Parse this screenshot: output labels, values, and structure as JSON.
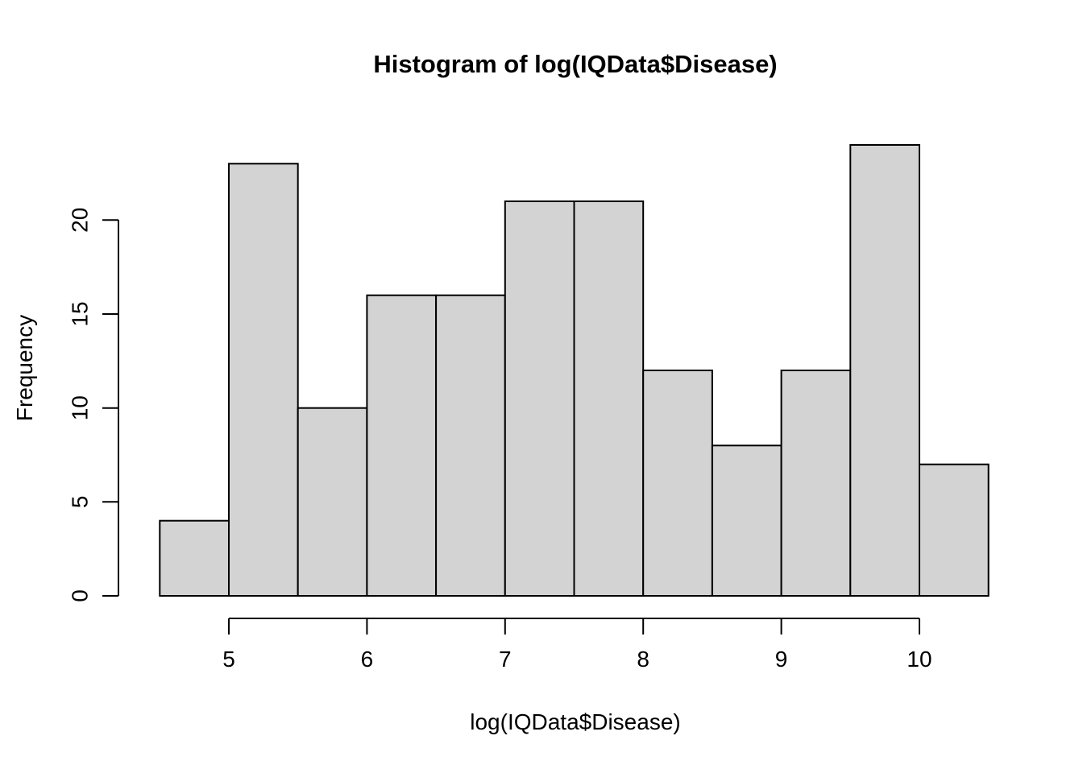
{
  "figure": {
    "background": "#ffffff",
    "text_color": "#000000"
  },
  "chart_data": {
    "type": "bar",
    "variant": "histogram",
    "title": "Histogram of log(IQData$Disease)",
    "xlabel": "log(IQData$Disease)",
    "ylabel": "Frequency",
    "bin_breaks": [
      4.5,
      5,
      5.5,
      6,
      6.5,
      7,
      7.5,
      8,
      8.5,
      9,
      9.5,
      10,
      10.5
    ],
    "counts": [
      4,
      23,
      10,
      16,
      16,
      21,
      21,
      12,
      8,
      12,
      24,
      7
    ],
    "xticks": [
      5,
      6,
      7,
      8,
      9,
      10
    ],
    "yticks": [
      0,
      5,
      10,
      15,
      20
    ],
    "xlim": [
      4.5,
      10.5
    ],
    "ylim": [
      0,
      24
    ],
    "grid": false,
    "legend": false,
    "bar_fill": "#d3d3d3",
    "bar_stroke": "#000000",
    "axis_color": "#000000"
  }
}
